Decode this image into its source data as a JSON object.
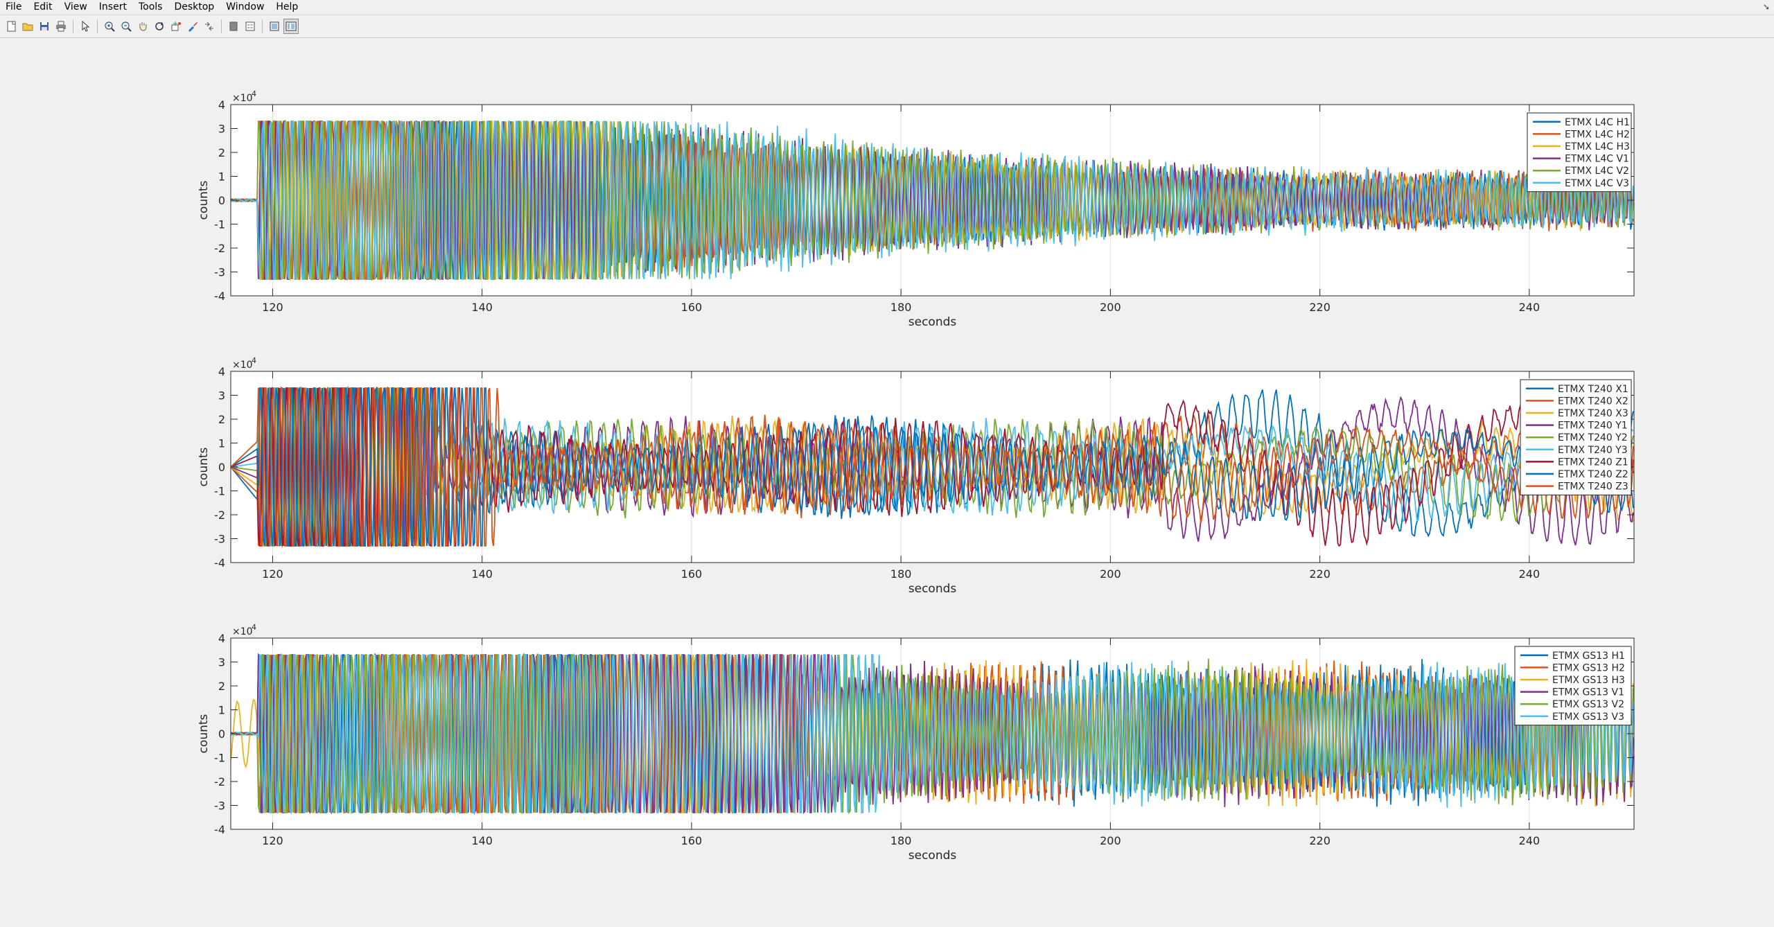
{
  "menubar": {
    "items": [
      "File",
      "Edit",
      "View",
      "Insert",
      "Tools",
      "Desktop",
      "Window",
      "Help"
    ]
  },
  "toolbar": {
    "buttons": [
      {
        "icon": "new-figure-icon"
      },
      {
        "icon": "open-file-icon"
      },
      {
        "icon": "save-icon"
      },
      {
        "icon": "print-icon"
      },
      {
        "icon": "edit-plot-arrow-icon"
      },
      {
        "icon": "zoom-in-icon"
      },
      {
        "icon": "zoom-out-icon"
      },
      {
        "icon": "pan-hand-icon"
      },
      {
        "icon": "rotate-3d-icon"
      },
      {
        "icon": "data-cursor-icon"
      },
      {
        "icon": "brush-icon"
      },
      {
        "icon": "link-plot-icon"
      },
      {
        "icon": "colorbar-icon"
      },
      {
        "icon": "legend-icon"
      },
      {
        "icon": "hide-plot-tools-icon"
      },
      {
        "icon": "show-plot-tools-icon"
      }
    ]
  },
  "colors": {
    "background": "#f0f0f0",
    "axes_background": "#ffffff",
    "axis_color": "#262626",
    "series_palette": [
      "#0072BD",
      "#D95319",
      "#EDB120",
      "#7E2F8E",
      "#77AC30",
      "#4DBEEE",
      "#A2142F"
    ]
  },
  "chart_data": [
    {
      "type": "line",
      "xlabel": "seconds",
      "ylabel": "counts",
      "exponent_label": "×10",
      "exponent_power": "4",
      "xlim": [
        116,
        250
      ],
      "ylim": [
        -4,
        4
      ],
      "xticks": [
        120,
        140,
        160,
        180,
        200,
        220,
        240
      ],
      "yticks": [
        -4,
        -3,
        -2,
        -1,
        0,
        1,
        2,
        3,
        4
      ],
      "grid": "vertical",
      "legend_position": "top-right",
      "series": [
        {
          "name": "ETMX L4C H1",
          "color": "#0072BD"
        },
        {
          "name": "ETMX L4C H2",
          "color": "#D95319"
        },
        {
          "name": "ETMX L4C H3",
          "color": "#EDB120"
        },
        {
          "name": "ETMX L4C V1",
          "color": "#7E2F8E"
        },
        {
          "name": "ETMX L4C V2",
          "color": "#77AC30"
        },
        {
          "name": "ETMX L4C V3",
          "color": "#4DBEEE"
        }
      ]
    },
    {
      "type": "line",
      "xlabel": "seconds",
      "ylabel": "counts",
      "exponent_label": "×10",
      "exponent_power": "4",
      "xlim": [
        116,
        250
      ],
      "ylim": [
        -4,
        4
      ],
      "xticks": [
        120,
        140,
        160,
        180,
        200,
        220,
        240
      ],
      "yticks": [
        -4,
        -3,
        -2,
        -1,
        0,
        1,
        2,
        3,
        4
      ],
      "grid": "vertical",
      "legend_position": "top-right",
      "series": [
        {
          "name": "ETMX T240 X1",
          "color": "#0072BD"
        },
        {
          "name": "ETMX T240 X2",
          "color": "#D95319"
        },
        {
          "name": "ETMX T240 X3",
          "color": "#EDB120"
        },
        {
          "name": "ETMX T240 Y1",
          "color": "#7E2F8E"
        },
        {
          "name": "ETMX T240 Y2",
          "color": "#77AC30"
        },
        {
          "name": "ETMX T240 Y3",
          "color": "#4DBEEE"
        },
        {
          "name": "ETMX T240 Z1",
          "color": "#A2142F"
        },
        {
          "name": "ETMX T240 Z2",
          "color": "#0072BD"
        },
        {
          "name": "ETMX T240 Z3",
          "color": "#D95319"
        }
      ]
    },
    {
      "type": "line",
      "xlabel": "seconds",
      "ylabel": "counts",
      "exponent_label": "×10",
      "exponent_power": "4",
      "xlim": [
        116,
        250
      ],
      "ylim": [
        -4,
        4
      ],
      "xticks": [
        120,
        140,
        160,
        180,
        200,
        220,
        240
      ],
      "yticks": [
        -4,
        -3,
        -2,
        -1,
        0,
        1,
        2,
        3,
        4
      ],
      "grid": "vertical",
      "legend_position": "top-right",
      "series": [
        {
          "name": "ETMX GS13 H1",
          "color": "#0072BD"
        },
        {
          "name": "ETMX GS13 H2",
          "color": "#D95319"
        },
        {
          "name": "ETMX GS13 H3",
          "color": "#EDB120"
        },
        {
          "name": "ETMX GS13 V1",
          "color": "#7E2F8E"
        },
        {
          "name": "ETMX GS13 V2",
          "color": "#77AC30"
        },
        {
          "name": "ETMX GS13 V3",
          "color": "#4DBEEE"
        }
      ]
    }
  ]
}
